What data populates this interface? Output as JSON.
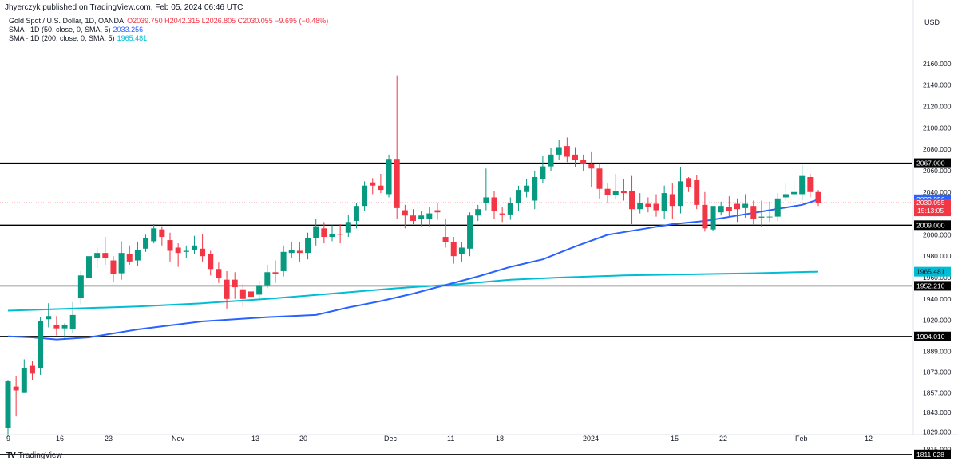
{
  "publisher_line": "Jhyerczyk published on TradingView.com, Feb 05, 2024 06:46 UTC",
  "legend": {
    "symbol": "Gold Spot / U.S. Dollar, 1D, OANDA",
    "ohlc": "O2039.750  H2042.315  L2026.805  C2030.055  −9.695 (−0.48%)",
    "sma50_label": "SMA · 1D (50, close, 0, SMA, 5)",
    "sma50_value": "2033.256",
    "sma200_label": "SMA · 1D (200, close, 0, SMA, 5)",
    "sma200_value": "1965.481"
  },
  "footer": {
    "brand": "TradingView"
  },
  "colors": {
    "up": "#089981",
    "down": "#f23645",
    "sma50": "#2962ff",
    "sma200": "#00bcd4",
    "level": "#000000",
    "price_tag": "#f23645"
  },
  "chart_data": {
    "type": "candlestick",
    "currency": "USD",
    "y_ticks": [
      "2160.000",
      "2140.000",
      "2120.000",
      "2100.000",
      "2080.000",
      "2060.000",
      "2040.000",
      "2020.000",
      "2000.000",
      "1980.000",
      "1960.000",
      "1940.000",
      "1920.000",
      "1889.000",
      "1873.000",
      "1857.000",
      "1843.000",
      "1829.000",
      "1815.000"
    ],
    "x_ticks": [
      "9",
      "16",
      "23",
      "Nov",
      "13",
      "20",
      "Dec",
      "11",
      "18",
      "2024",
      "15",
      "22",
      "Feb",
      "12"
    ],
    "horizontal_levels": [
      2067.0,
      2009.0,
      1952.21,
      1904.01,
      1811.028
    ],
    "horizontal_level_labels": [
      "2067.000",
      "2009.000",
      "1952.210",
      "1904.010",
      "1811.028"
    ],
    "price_tags": {
      "sma50": "2033.256",
      "last_price": "2030.055",
      "countdown": "15:13:05",
      "sma200": "1965.481"
    },
    "candles": [
      [
        1832,
        1867,
        1825,
        1866
      ],
      [
        1862,
        1870,
        1840,
        1859
      ],
      [
        1857,
        1883,
        1857,
        1876
      ],
      [
        1878,
        1882,
        1867,
        1872
      ],
      [
        1876,
        1923,
        1871,
        1919
      ],
      [
        1921,
        1936,
        1913,
        1924
      ],
      [
        1915,
        1924,
        1905,
        1912
      ],
      [
        1912,
        1917,
        1902,
        1915
      ],
      [
        1911,
        1937,
        1907,
        1925
      ],
      [
        1941,
        1966,
        1935,
        1962
      ],
      [
        1960,
        1983,
        1955,
        1980
      ],
      [
        1978,
        1988,
        1969,
        1983
      ],
      [
        1983,
        1998,
        1972,
        1978
      ],
      [
        1976,
        1980,
        1956,
        1963
      ],
      [
        1964,
        1994,
        1958,
        1983
      ],
      [
        1982,
        1990,
        1972,
        1975
      ],
      [
        1976,
        1993,
        1971,
        1986
      ],
      [
        1987,
        2000,
        1984,
        1997
      ],
      [
        1994,
        2010,
        1992,
        2006
      ],
      [
        2005,
        2008,
        1990,
        1998
      ],
      [
        1995,
        2002,
        1975,
        1985
      ],
      [
        1988,
        1992,
        1970,
        1983
      ],
      [
        1984,
        1990,
        1978,
        1985
      ],
      [
        1986,
        1999,
        1982,
        1990
      ],
      [
        1987,
        2001,
        1975,
        1980
      ],
      [
        1982,
        1985,
        1962,
        1968
      ],
      [
        1968,
        1974,
        1955,
        1960
      ],
      [
        1958,
        1966,
        1931,
        1940
      ],
      [
        1958,
        1965,
        1940,
        1951
      ],
      [
        1949,
        1954,
        1933,
        1940
      ],
      [
        1947,
        1952,
        1935,
        1942
      ],
      [
        1944,
        1957,
        1939,
        1953
      ],
      [
        1953,
        1972,
        1950,
        1965
      ],
      [
        1965,
        1976,
        1955,
        1963
      ],
      [
        1966,
        1990,
        1961,
        1984
      ],
      [
        1983,
        1993,
        1978,
        1986
      ],
      [
        1985,
        1993,
        1975,
        1983
      ],
      [
        1983,
        2002,
        1977,
        1997
      ],
      [
        1997,
        2015,
        1990,
        2008
      ],
      [
        2006,
        2012,
        1992,
        1998
      ],
      [
        1998,
        2009,
        1994,
        2001
      ],
      [
        2001,
        2010,
        1992,
        2000
      ],
      [
        2002,
        2019,
        1998,
        2012
      ],
      [
        2013,
        2030,
        2006,
        2027
      ],
      [
        2027,
        2050,
        2022,
        2046
      ],
      [
        2049,
        2053,
        2038,
        2046
      ],
      [
        2046,
        2057,
        2039,
        2042
      ],
      [
        2038,
        2075,
        2035,
        2071
      ],
      [
        2071,
        2149,
        2015,
        2025
      ],
      [
        2023,
        2028,
        2006,
        2018
      ],
      [
        2018,
        2024,
        2010,
        2013
      ],
      [
        2015,
        2022,
        2008,
        2018
      ],
      [
        2015,
        2026,
        2008,
        2020
      ],
      [
        2023,
        2030,
        2014,
        2021
      ],
      [
        1998,
        2015,
        1988,
        1993
      ],
      [
        1993,
        1998,
        1973,
        1980
      ],
      [
        1982,
        1993,
        1975,
        1988
      ],
      [
        1987,
        2021,
        1980,
        2018
      ],
      [
        2018,
        2028,
        2013,
        2024
      ],
      [
        2030,
        2062,
        2023,
        2035
      ],
      [
        2035,
        2041,
        2015,
        2022
      ],
      [
        2020,
        2026,
        2012,
        2019
      ],
      [
        2019,
        2035,
        2014,
        2030
      ],
      [
        2030,
        2046,
        2022,
        2042
      ],
      [
        2040,
        2052,
        2035,
        2046
      ],
      [
        2032,
        2060,
        2024,
        2054
      ],
      [
        2052,
        2074,
        2048,
        2064
      ],
      [
        2064,
        2081,
        2060,
        2075
      ],
      [
        2075,
        2089,
        2070,
        2082
      ],
      [
        2083,
        2091,
        2068,
        2073
      ],
      [
        2075,
        2082,
        2063,
        2070
      ],
      [
        2070,
        2075,
        2060,
        2066
      ],
      [
        2066,
        2078,
        2045,
        2062
      ],
      [
        2062,
        2067,
        2034,
        2043
      ],
      [
        2043,
        2048,
        2030,
        2037
      ],
      [
        2037,
        2057,
        2033,
        2041
      ],
      [
        2041,
        2052,
        2032,
        2039
      ],
      [
        2041,
        2055,
        2010,
        2024
      ],
      [
        2024,
        2039,
        2020,
        2030
      ],
      [
        2029,
        2035,
        2021,
        2026
      ],
      [
        2029,
        2038,
        2017,
        2023
      ],
      [
        2022,
        2046,
        2015,
        2039
      ],
      [
        2038,
        2048,
        2015,
        2027
      ],
      [
        2027,
        2063,
        2020,
        2050
      ],
      [
        2053,
        2054,
        2040,
        2045
      ],
      [
        2051,
        2056,
        2024,
        2028
      ],
      [
        2028,
        2040,
        2003,
        2006
      ],
      [
        2005,
        2026,
        2004,
        2027
      ],
      [
        2021,
        2031,
        2018,
        2027
      ],
      [
        2026,
        2036,
        2017,
        2022
      ],
      [
        2029,
        2034,
        2012,
        2024
      ],
      [
        2025,
        2038,
        2016,
        2029
      ],
      [
        2027,
        2032,
        2009,
        2015
      ],
      [
        2016,
        2032,
        2007,
        2017
      ],
      [
        2017,
        2031,
        2012,
        2017
      ],
      [
        2017,
        2039,
        2013,
        2034
      ],
      [
        2035,
        2048,
        2032,
        2038
      ],
      [
        2038,
        2050,
        2033,
        2040
      ],
      [
        2038,
        2065,
        2032,
        2055
      ],
      [
        2054,
        2057,
        2035,
        2040
      ],
      [
        2040,
        2042,
        2027,
        2030
      ]
    ],
    "sma50": [
      [
        0,
        1904
      ],
      [
        3,
        1903
      ],
      [
        6,
        1901
      ],
      [
        10,
        1903
      ],
      [
        16,
        1911
      ],
      [
        24,
        1919
      ],
      [
        32,
        1923
      ],
      [
        38,
        1925
      ],
      [
        42,
        1932
      ],
      [
        46,
        1938
      ],
      [
        50,
        1945
      ],
      [
        54,
        1953
      ],
      [
        58,
        1961
      ],
      [
        62,
        1970
      ],
      [
        66,
        1977
      ],
      [
        70,
        1989
      ],
      [
        74,
        2000
      ],
      [
        78,
        2005
      ],
      [
        82,
        2010
      ],
      [
        86,
        2013
      ],
      [
        90,
        2018
      ],
      [
        94,
        2023
      ],
      [
        98,
        2028
      ],
      [
        100,
        2033
      ]
    ],
    "sma200": [
      [
        0,
        1929
      ],
      [
        8,
        1931
      ],
      [
        16,
        1933
      ],
      [
        24,
        1936
      ],
      [
        32,
        1940
      ],
      [
        40,
        1945
      ],
      [
        48,
        1950
      ],
      [
        56,
        1954
      ],
      [
        62,
        1958
      ],
      [
        68,
        1960
      ],
      [
        76,
        1962
      ],
      [
        84,
        1963
      ],
      [
        92,
        1964
      ],
      [
        100,
        1965.5
      ]
    ]
  }
}
